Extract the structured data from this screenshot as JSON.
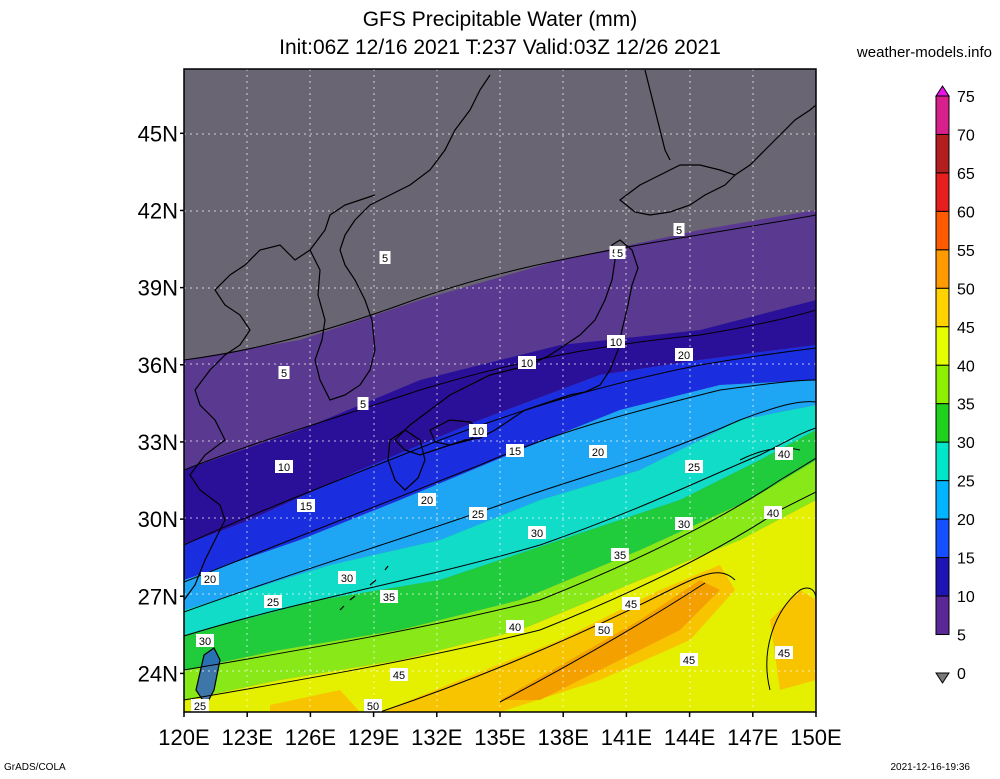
{
  "header": {
    "title_line1": "GFS Precipitable Water (mm)",
    "title_line2": "Init:06Z 12/16 2021 T:237 Valid:03Z 12/26 2021",
    "site": "weather-models.info"
  },
  "footer": {
    "left": "GrADS/COLA",
    "right": "2021-12-16-19:36"
  },
  "map": {
    "lat_labels": [
      "45N",
      "42N",
      "39N",
      "36N",
      "33N",
      "30N",
      "27N",
      "24N"
    ],
    "lon_labels": [
      "120E",
      "123E",
      "126E",
      "129E",
      "132E",
      "135E",
      "138E",
      "141E",
      "144E",
      "147E",
      "150E"
    ],
    "contour_labels": [
      {
        "text": "5"
      },
      {
        "text": "5"
      },
      {
        "text": "5"
      },
      {
        "text": "5"
      },
      {
        "text": "5"
      },
      {
        "text": "10"
      },
      {
        "text": "10"
      },
      {
        "text": "10"
      },
      {
        "text": "15"
      },
      {
        "text": "15"
      },
      {
        "text": "15"
      },
      {
        "text": "20"
      },
      {
        "text": "20"
      },
      {
        "text": "20"
      },
      {
        "text": "20"
      },
      {
        "text": "25"
      },
      {
        "text": "25"
      },
      {
        "text": "25"
      },
      {
        "text": "30"
      },
      {
        "text": "30"
      },
      {
        "text": "30"
      },
      {
        "text": "35"
      },
      {
        "text": "35"
      },
      {
        "text": "40"
      },
      {
        "text": "40"
      },
      {
        "text": "40"
      },
      {
        "text": "45"
      },
      {
        "text": "45"
      },
      {
        "text": "45"
      },
      {
        "text": "50"
      },
      {
        "text": "50"
      },
      {
        "text": "25"
      },
      {
        "text": "30"
      },
      {
        "text": "5"
      },
      {
        "text": "10"
      },
      {
        "text": "45"
      }
    ]
  },
  "colorbar": {
    "labels": [
      "75",
      "70",
      "65",
      "60",
      "55",
      "50",
      "45",
      "40",
      "35",
      "30",
      "25",
      "20",
      "15",
      "10",
      "5",
      "0"
    ],
    "colors": [
      "#e614e6",
      "#d8208c",
      "#b31e1e",
      "#e61e1e",
      "#ff5a00",
      "#ff9b00",
      "#ffd200",
      "#e6ff00",
      "#8cf000",
      "#1ed21e",
      "#00e6c8",
      "#00b4ff",
      "#1450ff",
      "#1e14b4",
      "#5a2896",
      "#787878"
    ]
  }
}
